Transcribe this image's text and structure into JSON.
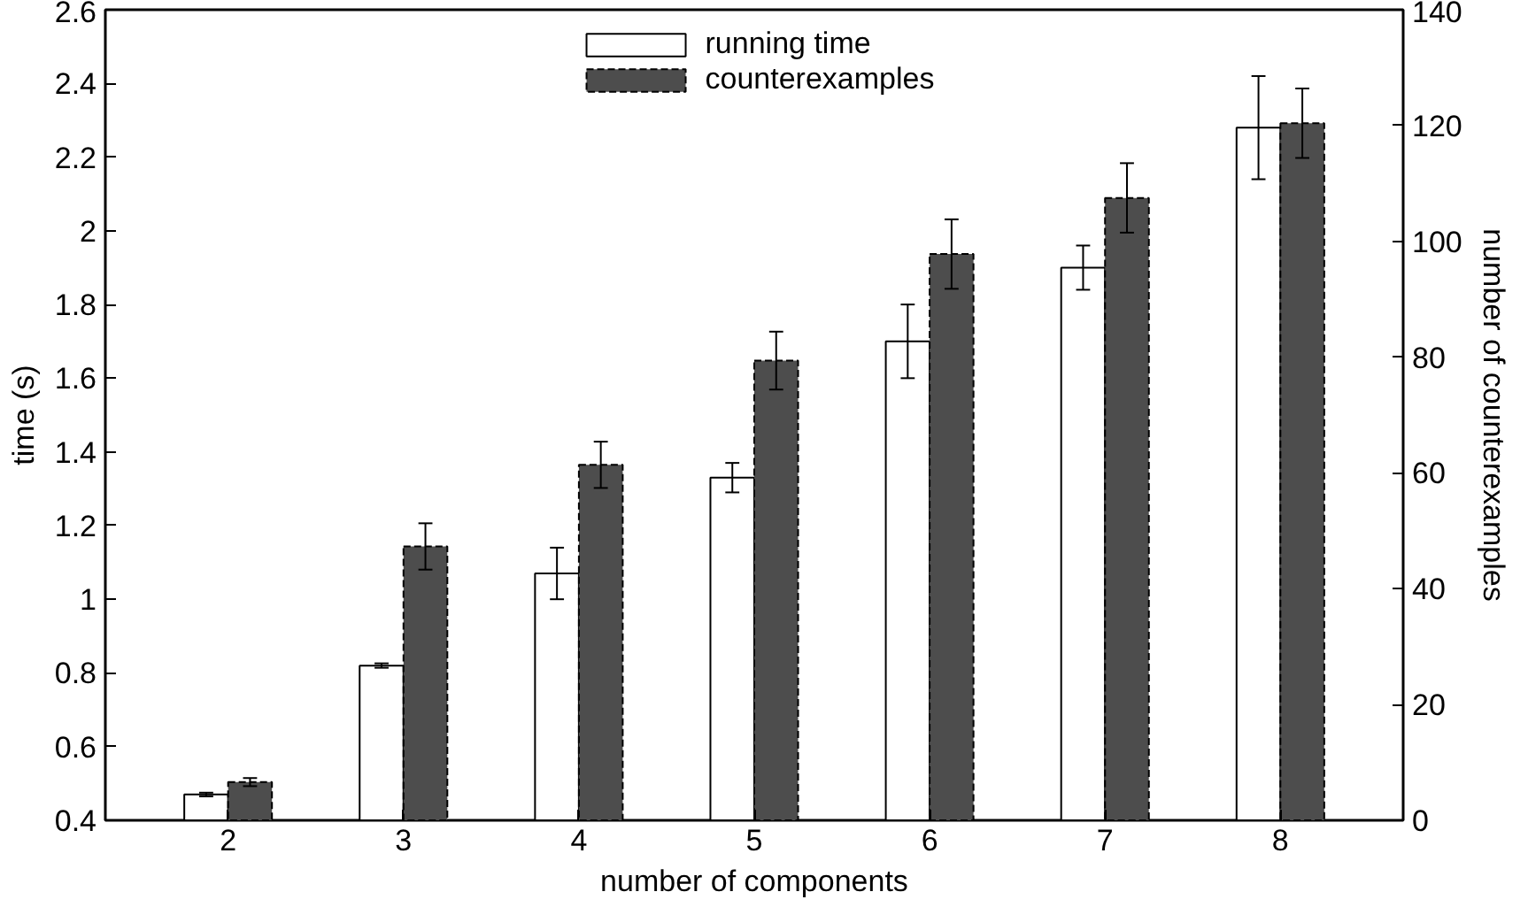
{
  "chart_data": {
    "type": "bar",
    "xlabel": "number of components",
    "ylabel": "time (s)",
    "y2label": "number of counterexamples",
    "categories": [
      "2",
      "3",
      "4",
      "5",
      "6",
      "7",
      "8"
    ],
    "series": [
      {
        "name": "running time",
        "color": "#ffffff",
        "values": [
          0.47,
          0.82,
          1.07,
          1.33,
          1.7,
          1.9,
          2.28
        ],
        "errors": [
          0.005,
          0.006,
          0.07,
          0.04,
          0.1,
          0.06,
          0.14
        ]
      },
      {
        "name": "counterexamples",
        "color": "#4d4d4d",
        "axis": "y2",
        "values": [
          6.6,
          47.3,
          61.4,
          79.4,
          97.8,
          107.5,
          120.4
        ],
        "errors": [
          0.7,
          4,
          4,
          5,
          6,
          6,
          6
        ]
      }
    ],
    "ylim": [
      0.4,
      2.6
    ],
    "yticks": [
      0.4,
      0.6,
      0.8,
      1,
      1.2,
      1.4,
      1.6,
      1.8,
      2,
      2.2,
      2.4,
      2.6
    ],
    "y2lim": [
      0,
      140
    ],
    "y2ticks": [
      0,
      20,
      40,
      60,
      80,
      100,
      120,
      140
    ],
    "grid": false,
    "legend": "top"
  }
}
